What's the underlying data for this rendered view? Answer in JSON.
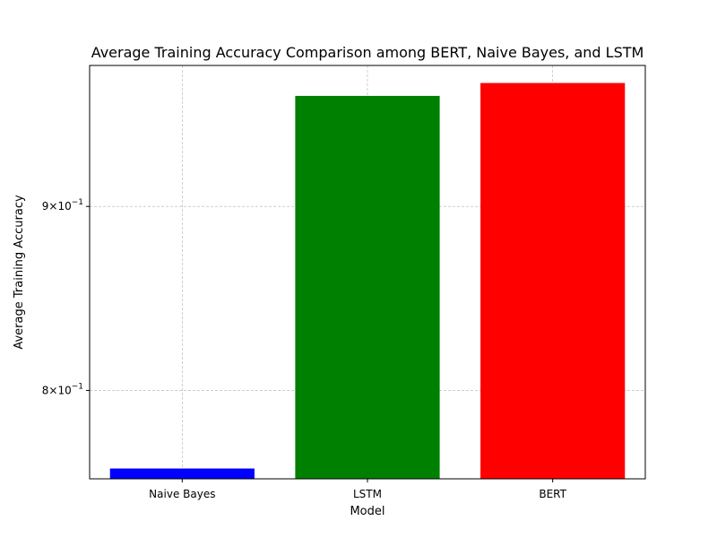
{
  "chart_data": {
    "type": "bar",
    "title": "Average Training Accuracy Comparison among BERT, Naive Bayes, and LSTM",
    "xlabel": "Model",
    "ylabel": "Average Training Accuracy",
    "categories": [
      "Naive Bayes",
      "LSTM",
      "BERT"
    ],
    "values": [
      0.761,
      0.966,
      0.974
    ],
    "colors": [
      "#0000ff",
      "#008000",
      "#ff0000"
    ],
    "y_scale": "log",
    "ylim": [
      0.756,
      0.985
    ],
    "y_ticks": [
      {
        "value": 0.8,
        "mantissa": "8",
        "exponent": "−1"
      },
      {
        "value": 0.9,
        "mantissa": "9",
        "exponent": "−1"
      }
    ],
    "grid": true,
    "legend": "none"
  }
}
